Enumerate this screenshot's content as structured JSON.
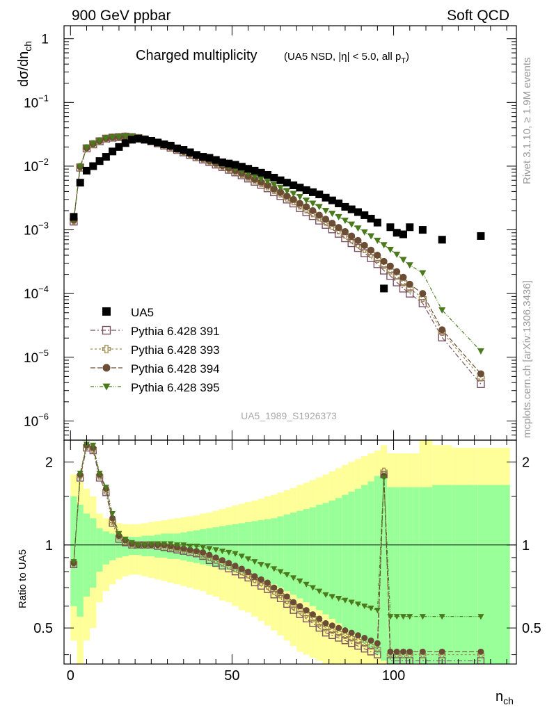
{
  "header": {
    "left": "900 GeV ppbar",
    "right": "Soft QCD"
  },
  "title": {
    "main": "Charged multiplicity",
    "sub_prefix": "(UA5 NSD, |η| < 5.0, all p",
    "sub_subscript": "T",
    "sub_suffix": ")"
  },
  "side_texts": {
    "rivet": "Rivet 3.1.10, ≥ 1.9M events",
    "mcplots": "mcplots.cern.ch [arXiv:1306.3436]"
  },
  "analysis_id": "UA5_1989_S1926373",
  "axes": {
    "ylabel_main_base": "dσ/dn",
    "ylabel_main_sub": "ch",
    "ylabel_ratio": "Ratio to UA5",
    "xlabel_base": "n",
    "xlabel_sub": "ch",
    "main_ticks": [
      {
        "base": "1",
        "exp": ""
      },
      {
        "base": "10",
        "exp": "−1"
      },
      {
        "base": "10",
        "exp": "−2"
      },
      {
        "base": "10",
        "exp": "−3"
      },
      {
        "base": "10",
        "exp": "−4"
      },
      {
        "base": "10",
        "exp": "−5"
      },
      {
        "base": "10",
        "exp": "−6"
      }
    ],
    "ratio_ticks": [
      "2",
      "1",
      "0.5"
    ],
    "x_ticks": [
      "0",
      "50",
      "100"
    ]
  },
  "legend": [
    {
      "label": "UA5",
      "marker": "square-filled",
      "color": "#000000"
    },
    {
      "label": "Pythia 6.428 391",
      "marker": "square-open",
      "color": "#7a5060"
    },
    {
      "label": "Pythia 6.428 393",
      "marker": "cross-open",
      "color": "#a08a50"
    },
    {
      "label": "Pythia 6.428 394",
      "marker": "circle-filled",
      "color": "#6b4c35"
    },
    {
      "label": "Pythia 6.428 395",
      "marker": "triangle-down",
      "color": "#4a7a1c"
    }
  ],
  "colors": {
    "band_outer": "#ffff99",
    "band_inner": "#99ff99"
  },
  "chart_data": {
    "type": "scatter",
    "xlim": [
      -2,
      138
    ],
    "ylim_main": [
      5e-07,
      1.6
    ],
    "ylim_ratio": [
      0.37,
      2.4
    ],
    "log_y": true,
    "ua5": {
      "x": [
        1,
        3,
        5,
        7,
        9,
        11,
        13,
        15,
        17,
        19,
        21,
        23,
        25,
        27,
        29,
        31,
        33,
        35,
        37,
        39,
        41,
        43,
        45,
        47,
        49,
        51,
        53,
        55,
        57,
        59,
        61,
        63,
        65,
        67,
        69,
        71,
        73,
        75,
        77,
        79,
        81,
        83,
        85,
        87,
        89,
        91,
        93,
        95,
        97,
        99,
        101,
        103,
        105,
        109,
        115,
        127
      ],
      "y": [
        0.0016,
        0.0055,
        0.0085,
        0.01,
        0.012,
        0.014,
        0.017,
        0.02,
        0.023,
        0.026,
        0.027,
        0.026,
        0.025,
        0.0235,
        0.022,
        0.021,
        0.019,
        0.018,
        0.0165,
        0.015,
        0.014,
        0.0135,
        0.0125,
        0.0115,
        0.011,
        0.0105,
        0.0098,
        0.0091,
        0.0085,
        0.0079,
        0.0073,
        0.0066,
        0.006,
        0.0055,
        0.005,
        0.0046,
        0.0042,
        0.0039,
        0.0036,
        0.0032,
        0.0029,
        0.0026,
        0.0023,
        0.0021,
        0.0019,
        0.0017,
        0.0015,
        0.0013,
        0.00012,
        0.0011,
        0.0009,
        0.00085,
        0.0011,
        0.001,
        0.0007,
        0.0008
      ]
    },
    "band": {
      "x_edges": [
        0,
        2,
        4,
        6,
        8,
        10,
        12,
        14,
        16,
        18,
        20,
        22,
        24,
        26,
        28,
        30,
        32,
        34,
        36,
        38,
        40,
        42,
        44,
        46,
        48,
        50,
        52,
        54,
        56,
        58,
        60,
        62,
        64,
        66,
        68,
        70,
        72,
        74,
        76,
        78,
        80,
        82,
        84,
        86,
        88,
        90,
        92,
        94,
        96,
        98,
        100,
        102,
        104,
        106,
        108,
        112,
        118,
        126,
        136
      ],
      "inner_hi": [
        1.5,
        1.4,
        1.3,
        1.25,
        1.15,
        1.12,
        1.1,
        1.08,
        1.07,
        1.07,
        1.07,
        1.08,
        1.08,
        1.09,
        1.1,
        1.1,
        1.1,
        1.11,
        1.12,
        1.13,
        1.14,
        1.15,
        1.16,
        1.17,
        1.18,
        1.19,
        1.2,
        1.21,
        1.22,
        1.23,
        1.24,
        1.25,
        1.27,
        1.29,
        1.31,
        1.33,
        1.35,
        1.37,
        1.4,
        1.42,
        1.45,
        1.48,
        1.52,
        1.56,
        1.6,
        1.65,
        1.7,
        1.78,
        1.85,
        1.62,
        1.62,
        1.62,
        1.62,
        1.62,
        1.62,
        1.65,
        1.65,
        1.65
      ],
      "inner_lo": [
        0.6,
        0.55,
        0.65,
        0.7,
        0.8,
        0.85,
        0.88,
        0.9,
        0.91,
        0.92,
        0.92,
        0.91,
        0.91,
        0.9,
        0.9,
        0.89,
        0.89,
        0.88,
        0.87,
        0.86,
        0.85,
        0.84,
        0.83,
        0.82,
        0.81,
        0.8,
        0.79,
        0.78,
        0.77,
        0.76,
        0.74,
        0.72,
        0.7,
        0.68,
        0.66,
        0.64,
        0.62,
        0.6,
        0.58,
        0.56,
        0.54,
        0.52,
        0.5,
        0.48,
        0.46,
        0.44,
        0.42,
        0.4,
        0.38,
        0.37,
        0.37,
        0.37,
        0.37,
        0.37,
        0.37,
        0.37,
        0.37,
        0.37
      ],
      "outer_hi": [
        1.8,
        1.7,
        1.6,
        1.5,
        1.3,
        1.25,
        1.22,
        1.2,
        1.19,
        1.19,
        1.19,
        1.2,
        1.21,
        1.22,
        1.23,
        1.24,
        1.25,
        1.26,
        1.27,
        1.28,
        1.3,
        1.31,
        1.33,
        1.35,
        1.37,
        1.39,
        1.41,
        1.43,
        1.45,
        1.47,
        1.5,
        1.52,
        1.55,
        1.58,
        1.61,
        1.65,
        1.68,
        1.72,
        1.76,
        1.8,
        1.85,
        1.9,
        1.95,
        2.0,
        2.05,
        2.1,
        2.15,
        2.2,
        2.3,
        2.15,
        2.15,
        2.15,
        2.15,
        2.15,
        2.4,
        2.3,
        2.25,
        2.25
      ],
      "outer_lo": [
        0.45,
        0.37,
        0.45,
        0.5,
        0.62,
        0.68,
        0.72,
        0.75,
        0.77,
        0.78,
        0.78,
        0.77,
        0.76,
        0.75,
        0.74,
        0.73,
        0.72,
        0.71,
        0.7,
        0.69,
        0.68,
        0.66,
        0.65,
        0.63,
        0.62,
        0.6,
        0.58,
        0.57,
        0.55,
        0.53,
        0.51,
        0.49,
        0.47,
        0.45,
        0.43,
        0.41,
        0.4,
        0.39,
        0.38,
        0.37,
        0.37,
        0.37,
        0.37,
        0.37,
        0.37,
        0.37,
        0.37,
        0.37,
        0.37,
        0.37,
        0.37,
        0.37,
        0.37,
        0.37,
        0.37,
        0.37,
        0.37,
        0.37
      ]
    },
    "series": [
      {
        "name": "Pythia 6.428 391",
        "x": [
          1,
          3,
          5,
          7,
          9,
          11,
          13,
          15,
          17,
          19,
          21,
          23,
          25,
          27,
          29,
          31,
          33,
          35,
          37,
          39,
          41,
          43,
          45,
          47,
          49,
          51,
          53,
          55,
          57,
          59,
          61,
          63,
          65,
          67,
          69,
          71,
          73,
          75,
          77,
          79,
          81,
          83,
          85,
          87,
          89,
          91,
          93,
          95,
          97,
          99,
          101,
          103,
          105,
          109,
          115,
          127
        ],
        "y": [
          0.00135,
          0.0095,
          0.019,
          0.022,
          0.0245,
          0.027,
          0.028,
          0.0285,
          0.029,
          0.0285,
          0.0275,
          0.0262,
          0.0245,
          0.0228,
          0.021,
          0.0195,
          0.018,
          0.0165,
          0.015,
          0.0138,
          0.0127,
          0.0116,
          0.0106,
          0.0097,
          0.0088,
          0.008,
          0.0072,
          0.0064,
          0.0057,
          0.0051,
          0.0045,
          0.0039,
          0.0034,
          0.003,
          0.0026,
          0.0022,
          0.0019,
          0.00165,
          0.0014,
          0.0012,
          0.00102,
          0.00087,
          0.00074,
          0.00062,
          0.00052,
          0.00043,
          0.00036,
          0.00029,
          0.00023,
          0.00019,
          0.00015,
          0.00012,
          0.0001,
          7.05e-05,
          2.05e-05,
          3.8e-06
        ],
        "ratio": [
          0.85,
          1.75,
          2.25,
          2.2,
          1.75,
          1.55,
          1.2,
          1.05,
          1.02,
          1.0,
          1.0,
          1.0,
          1.0,
          0.99,
          0.98,
          0.97,
          0.96,
          0.95,
          0.94,
          0.93,
          0.91,
          0.88,
          0.86,
          0.84,
          0.82,
          0.8,
          0.78,
          0.76,
          0.73,
          0.71,
          0.69,
          0.66,
          0.64,
          0.61,
          0.58,
          0.56,
          0.54,
          0.52,
          0.5,
          0.48,
          0.47,
          0.46,
          0.45,
          0.44,
          0.43,
          0.42,
          0.41,
          0.4,
          1.8,
          0.38,
          0.38,
          0.38,
          0.38,
          0.38,
          0.38,
          0.38
        ]
      },
      {
        "name": "Pythia 6.428 393",
        "x": [
          1,
          3,
          5,
          7,
          9,
          11,
          13,
          15,
          17,
          19,
          21,
          23,
          25,
          27,
          29,
          31,
          33,
          35,
          37,
          39,
          41,
          43,
          45,
          47,
          49,
          51,
          53,
          55,
          57,
          59,
          61,
          63,
          65,
          67,
          69,
          71,
          73,
          75,
          77,
          79,
          81,
          83,
          85,
          87,
          89,
          91,
          93,
          95,
          97,
          99,
          101,
          103,
          105,
          109,
          115,
          127
        ],
        "y": [
          0.0014,
          0.0097,
          0.0192,
          0.0222,
          0.0247,
          0.0272,
          0.0282,
          0.0287,
          0.0292,
          0.0287,
          0.0277,
          0.0264,
          0.0248,
          0.0231,
          0.0213,
          0.0198,
          0.0183,
          0.0168,
          0.0153,
          0.0141,
          0.013,
          0.0119,
          0.0109,
          0.01,
          0.0091,
          0.0083,
          0.0075,
          0.0067,
          0.006,
          0.0054,
          0.0048,
          0.0042,
          0.0037,
          0.0032,
          0.0028,
          0.0024,
          0.0021,
          0.00182,
          0.00156,
          0.00134,
          0.00115,
          0.00098,
          0.00084,
          0.00071,
          0.0006,
          0.0005,
          0.00042,
          0.00035,
          0.00028,
          0.00023,
          0.00019,
          0.00015,
          0.00012,
          8.5e-05,
          2.5e-05,
          4.8e-06
        ],
        "ratio": [
          0.86,
          1.78,
          2.28,
          2.22,
          1.78,
          1.57,
          1.22,
          1.07,
          1.03,
          1.0,
          1.0,
          1.0,
          1.0,
          1.0,
          0.99,
          0.98,
          0.97,
          0.96,
          0.95,
          0.94,
          0.92,
          0.9,
          0.88,
          0.86,
          0.84,
          0.82,
          0.8,
          0.78,
          0.75,
          0.73,
          0.71,
          0.68,
          0.66,
          0.63,
          0.6,
          0.58,
          0.56,
          0.54,
          0.52,
          0.5,
          0.49,
          0.48,
          0.47,
          0.46,
          0.45,
          0.44,
          0.43,
          0.42,
          1.85,
          0.4,
          0.4,
          0.4,
          0.4,
          0.4,
          0.4,
          0.4
        ]
      },
      {
        "name": "Pythia 6.428 394",
        "x": [
          1,
          3,
          5,
          7,
          9,
          11,
          13,
          15,
          17,
          19,
          21,
          23,
          25,
          27,
          29,
          31,
          33,
          35,
          37,
          39,
          41,
          43,
          45,
          47,
          49,
          51,
          53,
          55,
          57,
          59,
          61,
          63,
          65,
          67,
          69,
          71,
          73,
          75,
          77,
          79,
          81,
          83,
          85,
          87,
          89,
          91,
          93,
          95,
          97,
          99,
          101,
          103,
          105,
          109,
          115,
          127
        ],
        "y": [
          0.00142,
          0.0098,
          0.0194,
          0.0224,
          0.0249,
          0.0273,
          0.0283,
          0.0288,
          0.0293,
          0.0288,
          0.0278,
          0.0265,
          0.0249,
          0.0232,
          0.0215,
          0.02,
          0.0185,
          0.017,
          0.0155,
          0.0143,
          0.0132,
          0.0121,
          0.0111,
          0.0102,
          0.0093,
          0.0085,
          0.0077,
          0.0069,
          0.0062,
          0.0056,
          0.005,
          0.0044,
          0.0039,
          0.0034,
          0.003,
          0.0026,
          0.0023,
          0.002,
          0.0017,
          0.00147,
          0.00127,
          0.00109,
          0.00094,
          0.0008,
          0.00068,
          0.00057,
          0.00048,
          0.0004,
          0.00032,
          0.00027,
          0.00022,
          0.00018,
          0.00014,
          0.0001,
          2.7e-05,
          5.5e-06
        ],
        "ratio": [
          0.86,
          1.8,
          2.3,
          2.25,
          1.8,
          1.6,
          1.25,
          1.08,
          1.04,
          1.01,
          1.0,
          1.0,
          1.0,
          1.0,
          1.0,
          0.99,
          0.98,
          0.97,
          0.96,
          0.95,
          0.94,
          0.92,
          0.9,
          0.88,
          0.86,
          0.84,
          0.82,
          0.8,
          0.77,
          0.75,
          0.73,
          0.7,
          0.68,
          0.65,
          0.62,
          0.6,
          0.58,
          0.56,
          0.54,
          0.52,
          0.51,
          0.5,
          0.49,
          0.48,
          0.47,
          0.46,
          0.45,
          0.44,
          1.78,
          0.41,
          0.41,
          0.41,
          0.41,
          0.41,
          0.41,
          0.41
        ]
      },
      {
        "name": "Pythia 6.428 395",
        "x": [
          1,
          3,
          5,
          7,
          9,
          11,
          13,
          15,
          17,
          19,
          21,
          23,
          25,
          27,
          29,
          31,
          33,
          35,
          37,
          39,
          41,
          43,
          45,
          47,
          49,
          51,
          53,
          55,
          57,
          59,
          61,
          63,
          65,
          67,
          69,
          71,
          73,
          75,
          77,
          79,
          81,
          83,
          85,
          87,
          89,
          91,
          93,
          95,
          97,
          99,
          101,
          103,
          105,
          109,
          115,
          127
        ],
        "y": [
          0.00145,
          0.0099,
          0.0196,
          0.0226,
          0.0251,
          0.0275,
          0.0284,
          0.0289,
          0.0293,
          0.0289,
          0.0279,
          0.0267,
          0.0252,
          0.0236,
          0.0219,
          0.0204,
          0.0189,
          0.0175,
          0.0161,
          0.0149,
          0.0138,
          0.0127,
          0.0117,
          0.0108,
          0.0099,
          0.0091,
          0.0083,
          0.0076,
          0.0069,
          0.0063,
          0.0057,
          0.0051,
          0.0046,
          0.0041,
          0.0037,
          0.0033,
          0.0029,
          0.0026,
          0.0023,
          0.002,
          0.0018,
          0.0016,
          0.0014,
          0.00122,
          0.00106,
          0.00092,
          0.0008,
          0.00068,
          0.00058,
          0.00049,
          0.00041,
          0.00034,
          0.00028,
          0.00021,
          5.5e-05,
          1.25e-05
        ],
        "ratio": [
          0.87,
          1.82,
          2.32,
          2.3,
          1.82,
          1.62,
          1.3,
          1.1,
          1.05,
          1.02,
          1.0,
          1.0,
          1.01,
          1.01,
          1.01,
          1.01,
          1.0,
          1.0,
          0.99,
          0.99,
          0.98,
          0.97,
          0.96,
          0.95,
          0.94,
          0.93,
          0.91,
          0.89,
          0.87,
          0.85,
          0.84,
          0.82,
          0.8,
          0.78,
          0.76,
          0.74,
          0.72,
          0.7,
          0.68,
          0.66,
          0.65,
          0.64,
          0.63,
          0.62,
          0.61,
          0.6,
          0.59,
          0.58,
          1.75,
          0.55,
          0.55,
          0.55,
          0.55,
          0.55,
          0.55,
          0.55
        ]
      }
    ]
  }
}
